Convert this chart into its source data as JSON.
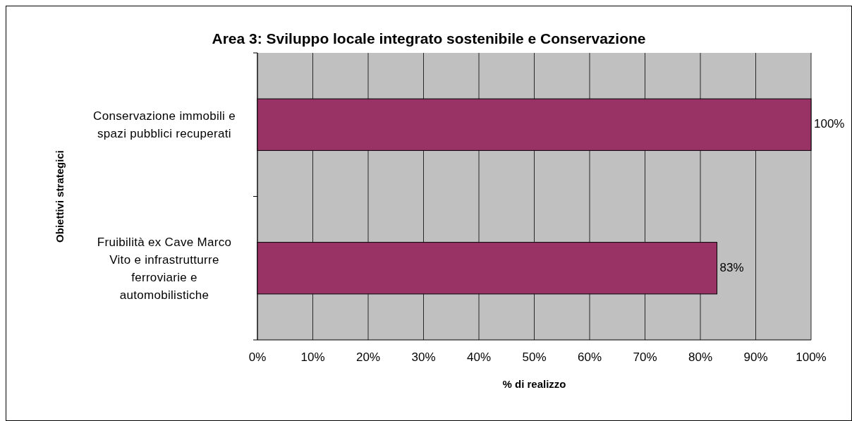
{
  "chart_data": {
    "type": "bar",
    "orientation": "horizontal",
    "title": "Area 3: Sviluppo locale integrato sostenibile e Conservazione",
    "xlabel": "% di realizzo",
    "ylabel": "Obiettivi strategici",
    "categories": [
      "Conservazione immobili e spazi pubblici recuperati",
      "Fruibilità ex Cave Marco Vito e infrastrutturre ferroviarie e automobilistiche"
    ],
    "values": [
      100,
      83
    ],
    "color": "#993366",
    "value_labels": [
      "100%",
      "83%"
    ],
    "xlim": [
      0,
      100
    ],
    "xticks": [
      {
        "value": 0,
        "label": "0%"
      },
      {
        "value": 10,
        "label": "10%"
      },
      {
        "value": 20,
        "label": "20%"
      },
      {
        "value": 30,
        "label": "30%"
      },
      {
        "value": 40,
        "label": "40%"
      },
      {
        "value": 50,
        "label": "50%"
      },
      {
        "value": 60,
        "label": "60%"
      },
      {
        "value": 70,
        "label": "70%"
      },
      {
        "value": 80,
        "label": "80%"
      },
      {
        "value": 90,
        "label": "90%"
      },
      {
        "value": 100,
        "label": "100%"
      }
    ],
    "grid": "x"
  }
}
